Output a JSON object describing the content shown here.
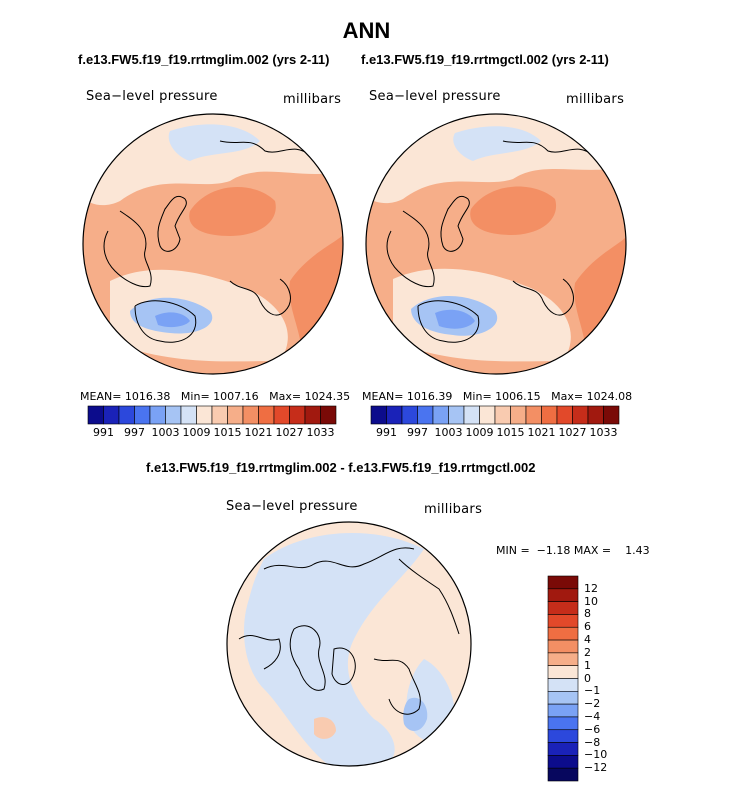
{
  "title": "ANN",
  "panel1": {
    "case_title": "f.e13.FW5.f19_f19.rrtmglim.002 (yrs 2-11)",
    "variable": "Sea−level pressure",
    "units": "millibars",
    "mean_label": "MEAN=",
    "mean": "1016.38",
    "min_label": "Min=",
    "min": "1007.16",
    "max_label": "Max=",
    "max": "1024.35"
  },
  "panel2": {
    "case_title": "f.e13.FW5.f19_f19.rrtmgctl.002 (yrs 2-11)",
    "variable": "Sea−level pressure",
    "units": "millibars",
    "mean_label": "MEAN=",
    "mean": "1016.39",
    "min_label": "Min=",
    "min": "1006.15",
    "max_label": "Max=",
    "max": "1024.08"
  },
  "diff": {
    "case_title": "f.e13.FW5.f19_f19.rrtmglim.002 - f.e13.FW5.f19_f19.rrtmgctl.002",
    "variable": "Sea−level pressure",
    "units": "millibars",
    "minmax": "MIN =  −1.18 MAX =    1.43"
  },
  "colorbar_abs": {
    "labels": [
      "991",
      "997",
      "1003",
      "1009",
      "1015",
      "1021",
      "1027",
      "1033"
    ],
    "colors": [
      "#0c0c8c",
      "#1a22b8",
      "#2c48dc",
      "#4a74f0",
      "#7aa2f5",
      "#a6c4f4",
      "#d4e2f6",
      "#fbe6d6",
      "#f9cbb0",
      "#f6ae89",
      "#f38f64",
      "#ef6e42",
      "#e2492a",
      "#c62d1a",
      "#a1190f",
      "#7a0a07"
    ]
  },
  "colorbar_diff": {
    "labels": [
      "12",
      "10",
      "8",
      "6",
      "4",
      "2",
      "1",
      "0",
      "−1",
      "−2",
      "−4",
      "−6",
      "−8",
      "−10",
      "−12"
    ],
    "colors": [
      "#7a0a07",
      "#a1190f",
      "#c62d1a",
      "#e2492a",
      "#ef6e42",
      "#f38f64",
      "#f6ae89",
      "#fbe6d6",
      "#d4e2f6",
      "#a6c4f4",
      "#7aa2f5",
      "#4a74f0",
      "#2c48dc",
      "#1a22b8",
      "#0c0c8c",
      "#07075e"
    ]
  },
  "colors": {
    "land_line": "#000000",
    "mean_fill": "#f6ae89",
    "high_fill": "#f38f64",
    "low_fill": "#a6c4f4",
    "pale_red": "#fbe6d6",
    "pale_blue": "#d4e2f6",
    "diff_pos": "#fbe6d6",
    "diff_neg": "#d4e2f6",
    "diff_neg2": "#a6c4f4",
    "diff_pos2": "#f9cbb0"
  }
}
